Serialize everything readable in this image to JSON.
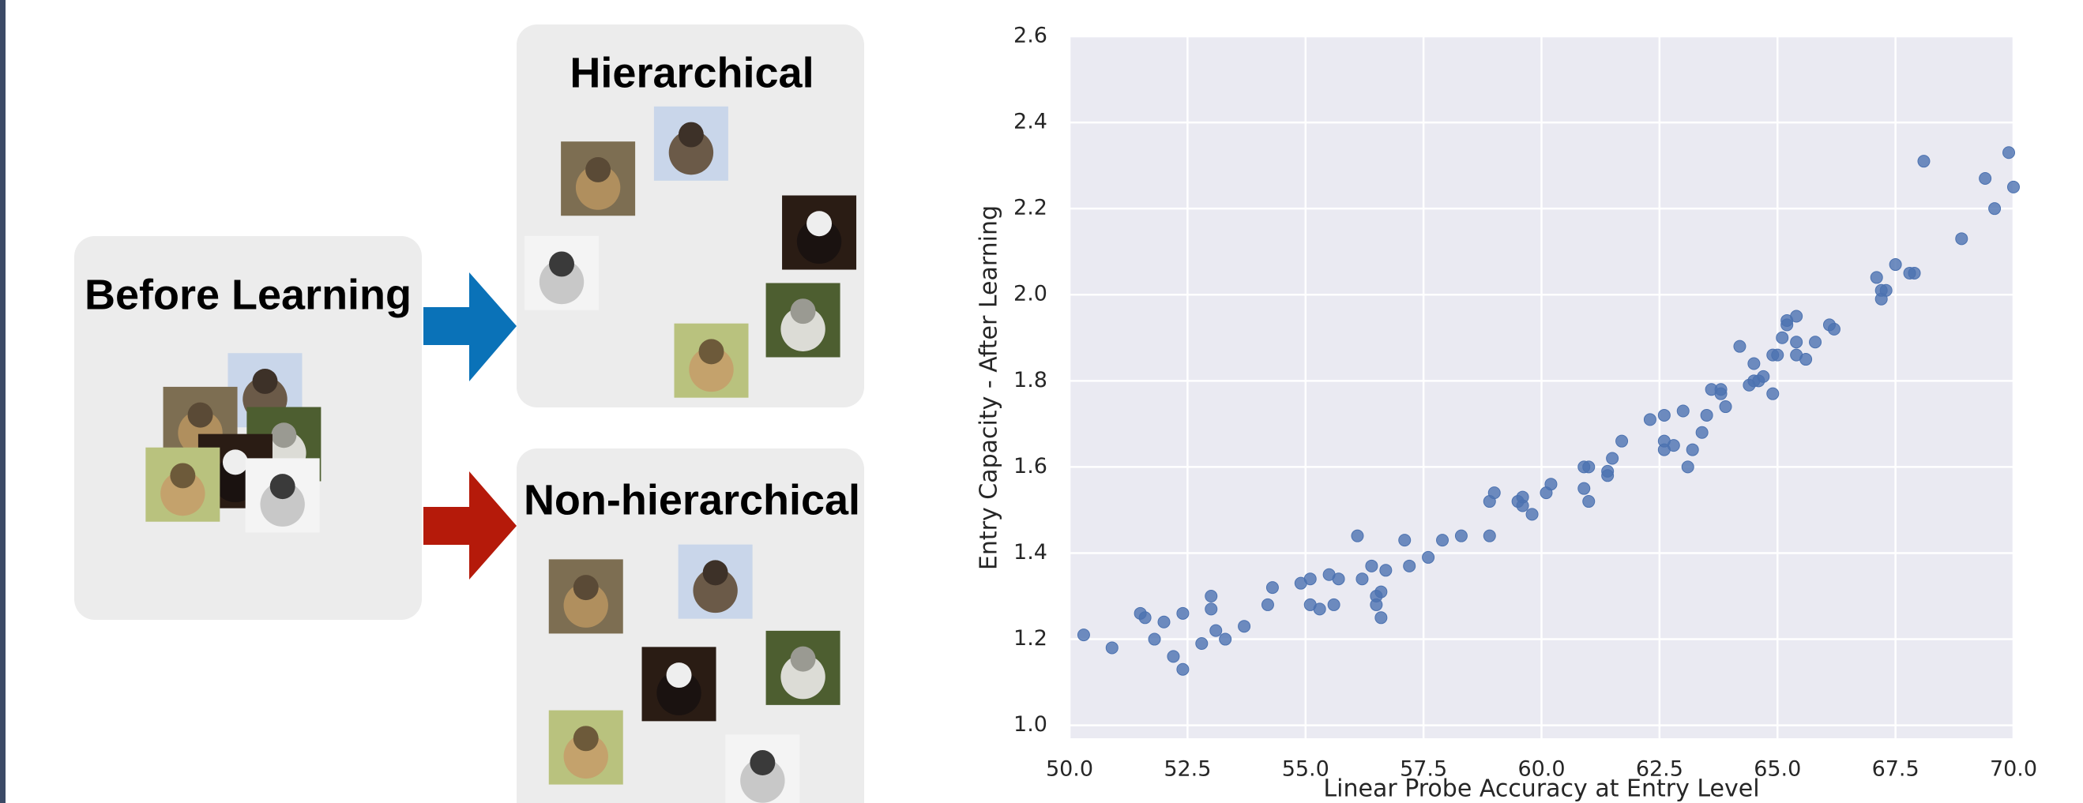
{
  "diagram": {
    "before_title": "Before Learning",
    "hierarchical_title": "Hierarchical",
    "nonhierarchical_title": "Non-hierarchical"
  },
  "chart_data": {
    "type": "scatter",
    "x_label": "Linear Probe Accuracy at Entry Level",
    "y_label": "Entry Capacity - After Learning",
    "color": "#4c72b0",
    "grid": true,
    "xlim": [
      50,
      70
    ],
    "ylim": [
      0.97,
      2.6
    ],
    "xticks": [
      {
        "value": 50,
        "label": "50.0"
      },
      52.5,
      {
        "value": 55,
        "label": "55.0"
      },
      57.5,
      {
        "value": 60,
        "label": "60.0"
      },
      62.5,
      {
        "value": 65,
        "label": "65.0"
      },
      67.5,
      {
        "value": 70,
        "label": "70.0"
      }
    ],
    "yticks": [
      {
        "value": 1,
        "label": "1.0"
      },
      1.2,
      1.4,
      1.6,
      1.8,
      {
        "value": 2,
        "label": "2.0"
      },
      2.2,
      2.4,
      2.6
    ],
    "x": [
      50.3,
      50.9,
      51.5,
      51.6,
      51.8,
      52.0,
      52.2,
      52.4,
      52.4,
      52.8,
      53.0,
      53.0,
      53.1,
      53.3,
      53.7,
      54.2,
      54.3,
      54.9,
      55.1,
      55.1,
      55.3,
      55.5,
      55.6,
      55.7,
      56.1,
      56.2,
      56.4,
      56.5,
      56.5,
      56.6,
      56.7,
      56.6,
      57.1,
      57.2,
      57.6,
      57.9,
      58.3,
      58.9,
      58.9,
      59.0,
      59.5,
      59.6,
      59.6,
      59.8,
      60.1,
      60.2,
      60.9,
      61.0,
      60.9,
      61.0,
      61.4,
      61.4,
      61.5,
      61.7,
      62.3,
      62.6,
      62.6,
      62.6,
      62.8,
      63.0,
      63.1,
      63.2,
      63.4,
      63.5,
      63.6,
      63.8,
      63.8,
      63.9,
      64.2,
      64.4,
      64.5,
      64.5,
      64.6,
      64.7,
      64.9,
      64.9,
      65.0,
      65.1,
      65.2,
      65.2,
      65.4,
      65.4,
      65.4,
      65.6,
      65.8,
      66.1,
      66.2,
      67.1,
      67.2,
      67.2,
      67.3,
      67.5,
      67.8,
      67.9,
      68.1,
      68.9,
      69.4,
      69.6,
      69.9,
      70.0
    ],
    "y": [
      1.21,
      1.18,
      1.26,
      1.25,
      1.2,
      1.24,
      1.16,
      1.26,
      1.13,
      1.19,
      1.3,
      1.27,
      1.22,
      1.2,
      1.23,
      1.28,
      1.32,
      1.33,
      1.34,
      1.28,
      1.27,
      1.35,
      1.28,
      1.34,
      1.44,
      1.34,
      1.37,
      1.3,
      1.28,
      1.25,
      1.36,
      1.31,
      1.43,
      1.37,
      1.39,
      1.43,
      1.44,
      1.44,
      1.52,
      1.54,
      1.52,
      1.51,
      1.53,
      1.49,
      1.54,
      1.56,
      1.6,
      1.6,
      1.55,
      1.52,
      1.59,
      1.58,
      1.62,
      1.66,
      1.71,
      1.72,
      1.66,
      1.64,
      1.65,
      1.73,
      1.6,
      1.64,
      1.68,
      1.72,
      1.78,
      1.77,
      1.78,
      1.74,
      1.88,
      1.79,
      1.8,
      1.84,
      1.8,
      1.81,
      1.77,
      1.86,
      1.86,
      1.9,
      1.94,
      1.93,
      1.89,
      1.95,
      1.86,
      1.85,
      1.89,
      1.93,
      1.92,
      2.04,
      1.99,
      2.01,
      2.01,
      2.07,
      2.05,
      2.05,
      2.31,
      2.13,
      2.27,
      2.2,
      2.33,
      2.25
    ]
  }
}
